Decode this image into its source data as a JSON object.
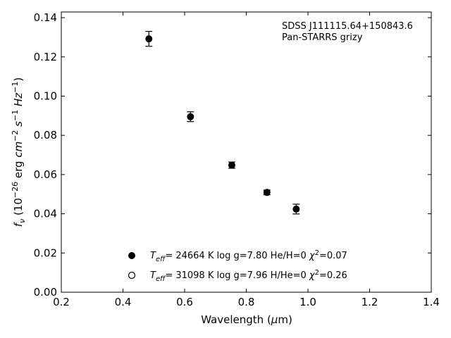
{
  "chart_data": {
    "type": "scatter",
    "xlabel": "Wavelength (μm)",
    "ylabel": "f_ν (10^-26 erg cm^-2 s^-1 Hz^-1)",
    "xlim": [
      0.2,
      1.4
    ],
    "ylim": [
      0.0,
      0.1429
    ],
    "xticks": [
      "0.2",
      "0.4",
      "0.6",
      "0.8",
      "1.0",
      "1.2",
      "1.4"
    ],
    "yticks": [
      "0.00",
      "0.02",
      "0.04",
      "0.06",
      "0.08",
      "0.10",
      "0.12",
      "0.14"
    ],
    "grid": false,
    "annotation_lines": [
      "SDSS J111115.64+150843.6",
      "Pan-STARRS grizy"
    ],
    "legend_position": "lower-center",
    "series": [
      {
        "marker": "filled-circle",
        "x": [
          0.484,
          0.619,
          0.753,
          0.867,
          0.962
        ],
        "y": [
          0.1292,
          0.0895,
          0.0648,
          0.0509,
          0.0424
        ],
        "yerr": [
          0.0038,
          0.0025,
          0.0016,
          0.0012,
          0.0025
        ]
      }
    ],
    "legend": [
      {
        "marker": "filled-circle",
        "teff": "24664",
        "logg": "7.80",
        "comp": "He/H=0",
        "chi2": "0.07"
      },
      {
        "marker": "open-circle",
        "teff": "31098",
        "logg": "7.96",
        "comp": "H/He=0",
        "chi2": "0.26"
      }
    ]
  }
}
